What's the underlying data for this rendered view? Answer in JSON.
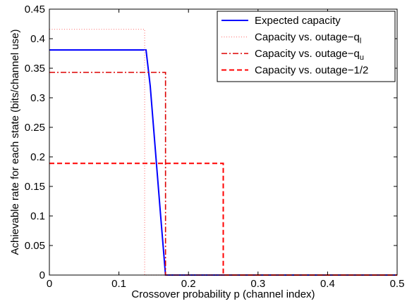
{
  "chart_data": {
    "type": "line",
    "xlabel": "Crossover probability p (channel index)",
    "ylabel": "Achievable rate for each state (bits/channel use)",
    "xlim": [
      0,
      0.5
    ],
    "ylim": [
      0,
      0.45
    ],
    "xticks": [
      0,
      0.1,
      0.2,
      0.3,
      0.4,
      0.5
    ],
    "xtick_labels": [
      "0",
      "0.1",
      "0.2",
      "0.3",
      "0.4",
      "0.5"
    ],
    "yticks": [
      0,
      0.05,
      0.1,
      0.15,
      0.2,
      0.25,
      0.3,
      0.35,
      0.4,
      0.45
    ],
    "ytick_labels": [
      "0",
      "0.05",
      "0.1",
      "0.15",
      "0.2",
      "0.25",
      "0.3",
      "0.35",
      "0.4",
      "0.45"
    ],
    "grid": false,
    "legend_position": "top-right",
    "series": [
      {
        "name": "Expected capacity",
        "color": "#0000ff",
        "dash": "solid",
        "x": [
          0,
          0.139,
          0.145,
          0.16,
          0.167,
          0.5
        ],
        "y": [
          0.381,
          0.381,
          0.32,
          0.1,
          0,
          0
        ]
      },
      {
        "name": "Capacity vs. outage−q_l",
        "legend_main": "Capacity vs. outage−q",
        "legend_sub": "l",
        "color": "#ff7f7f",
        "dash": "dotted",
        "x": [
          0,
          0.137,
          0.137,
          0.5
        ],
        "y": [
          0.416,
          0.416,
          0,
          0
        ]
      },
      {
        "name": "Capacity vs. outage−q_u",
        "legend_main": "Capacity vs. outage−q",
        "legend_sub": "u",
        "color": "#dd0000",
        "dash": "dashdot",
        "x": [
          0,
          0.167,
          0.167,
          0.5
        ],
        "y": [
          0.343,
          0.343,
          0,
          0
        ]
      },
      {
        "name": "Capacity vs. outage−1/2",
        "legend_main": "Capacity vs. outage−1/2",
        "legend_sub": "",
        "color": "#ff0000",
        "dash": "dashed",
        "x": [
          0,
          0.25,
          0.25,
          0.5
        ],
        "y": [
          0.189,
          0.189,
          0,
          0
        ]
      }
    ]
  }
}
